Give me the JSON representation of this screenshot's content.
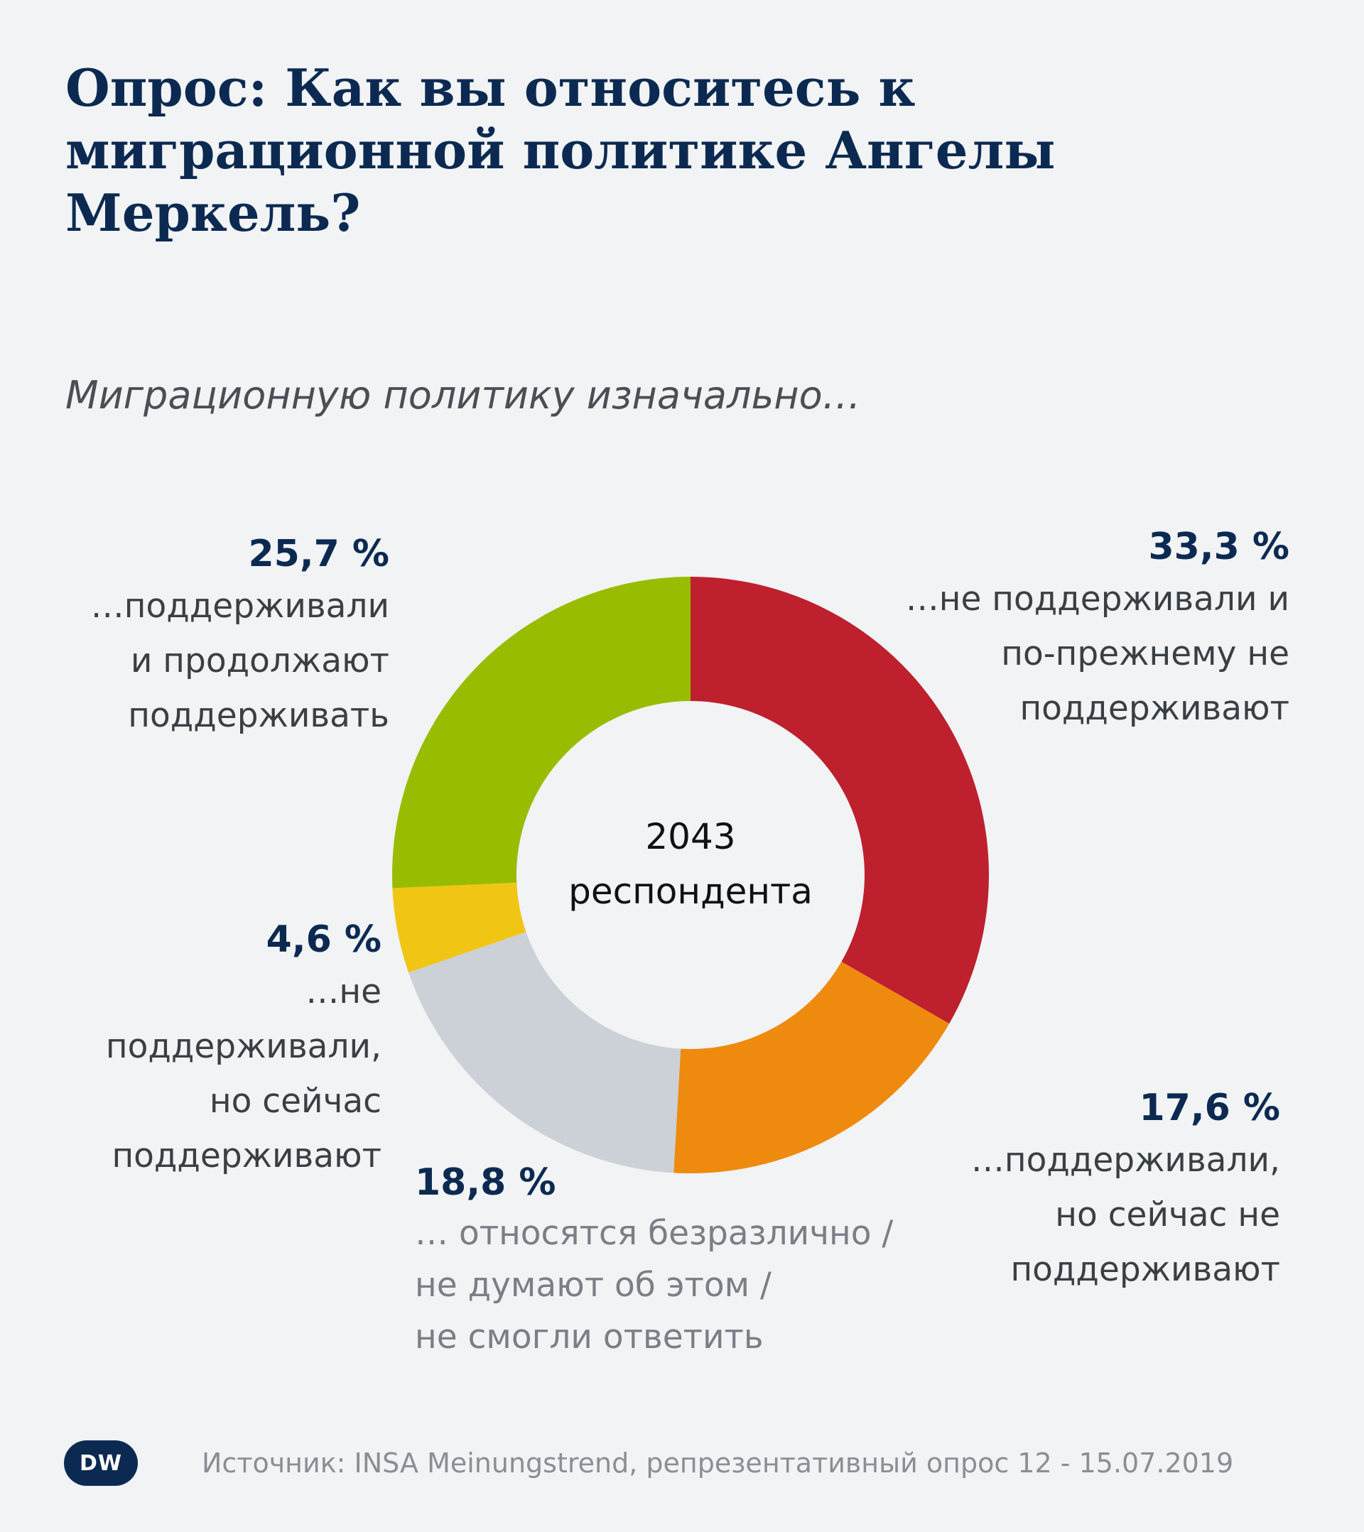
{
  "title": "Опрос: Как вы относитесь к миграционной политике Ангелы Меркель?",
  "subtitle": "Миграционную политику изначально…",
  "center": {
    "count": "2043",
    "unit": "респондента"
  },
  "chart_data": {
    "type": "pie",
    "variant": "donut",
    "title": "Опрос: Как вы относитесь к миграционной политике Ангелы Меркель?",
    "subtitle": "Миграционную политику изначально…",
    "total_respondents": 2043,
    "slices": [
      {
        "key": "red",
        "value": 33.3,
        "label": "33,3 %",
        "description": "…не поддерживали и по-прежнему не поддерживают",
        "color": "#be202e"
      },
      {
        "key": "orange",
        "value": 17.6,
        "label": "17,6 %",
        "description": "…поддерживали, но сейчас не поддерживают",
        "color": "#ee8a0e"
      },
      {
        "key": "grey",
        "value": 18.8,
        "label": "18,8 %",
        "description": "… относятся безразлично / не думают об этом / не смогли ответить",
        "color": "#cbd1d7"
      },
      {
        "key": "yellow",
        "value": 4.6,
        "label": "4,6 %",
        "description": "…не поддерживали, но сейчас поддерживают",
        "color": "#f1c514"
      },
      {
        "key": "green",
        "value": 25.7,
        "label": "25,7 %",
        "description": "…поддерживали и продолжают поддерживать",
        "color": "#98bc00"
      }
    ]
  },
  "labels": {
    "red": {
      "pct": "33,3 %",
      "lines": [
        "…не поддерживали и",
        "по-прежнему не",
        "поддерживают"
      ]
    },
    "orange": {
      "pct": "17,6 %",
      "lines": [
        "…поддерживали,",
        "но сейчас не",
        "поддерживают"
      ]
    },
    "grey": {
      "pct": "18,8 %",
      "lines": [
        "… относятся безразлично /",
        "не думают об этом /",
        "не смогли ответить"
      ]
    },
    "yellow": {
      "pct": "4,6 %",
      "lines": [
        "…не",
        "поддерживали,",
        "но сейчас",
        "поддерживают"
      ]
    },
    "green": {
      "pct": "25,7 %",
      "lines": [
        "…поддерживали",
        "и продолжают",
        "поддерживать"
      ]
    }
  },
  "footer": {
    "logo": "DW",
    "source": "Источник: INSA Meinungstrend, репрезентативный опрос 12 - 15.07.2019"
  }
}
